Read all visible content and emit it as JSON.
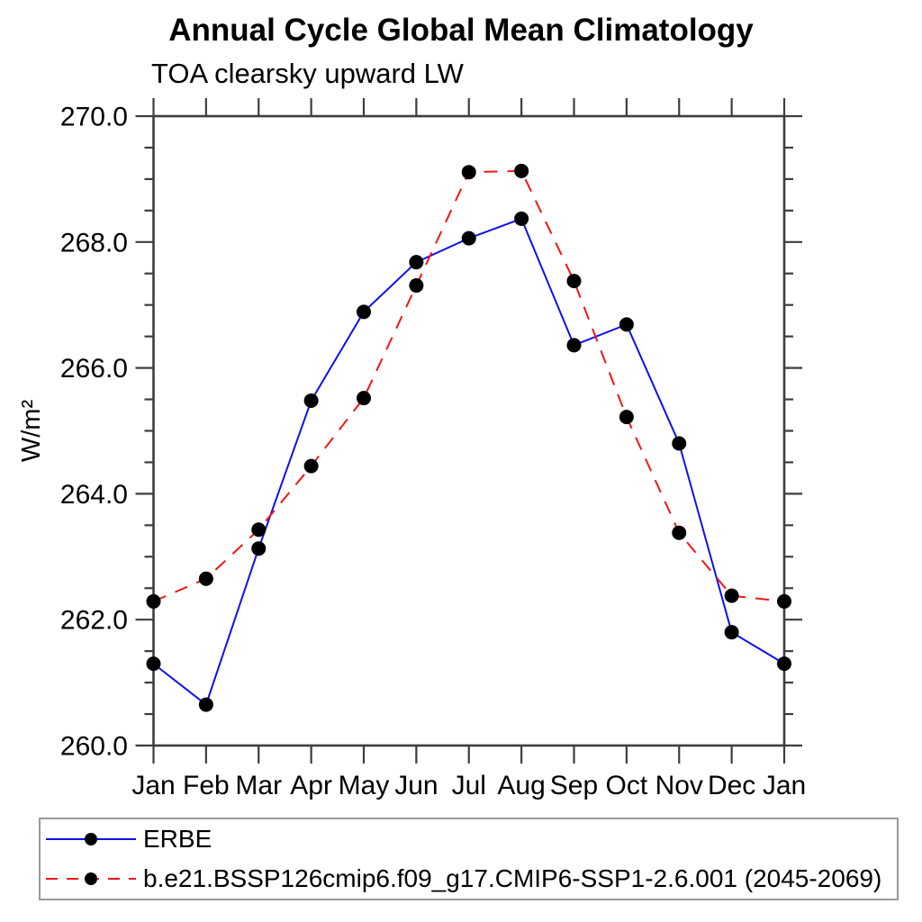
{
  "chart_data": {
    "type": "line",
    "title": "Annual Cycle Global Mean Climatology",
    "subtitle": "TOA clearsky upward LW",
    "ylabel": "W/m²",
    "xlabel": "",
    "categories": [
      "Jan",
      "Feb",
      "Mar",
      "Apr",
      "May",
      "Jun",
      "Jul",
      "Aug",
      "Sep",
      "Oct",
      "Nov",
      "Dec",
      "Jan"
    ],
    "ylim": [
      260.0,
      270.0
    ],
    "ytick_labels": [
      "260.0",
      "262.0",
      "264.0",
      "266.0",
      "268.0",
      "270.0"
    ],
    "ytick_major_interval": 2.0,
    "ytick_minor_interval": 0.5,
    "grid": false,
    "legend_position": "bottom-left",
    "axis_color": "#3d3d3d",
    "marker_color": "#000000",
    "series": [
      {
        "name": "ERBE",
        "color": "#0f0fee",
        "line_style": "solid",
        "marker": "filled-circle",
        "values": [
          261.3,
          260.65,
          263.13,
          265.48,
          266.89,
          267.68,
          268.06,
          268.37,
          266.36,
          266.69,
          264.8,
          261.8,
          261.3
        ]
      },
      {
        "name": "b.e21.BSSP126cmip6.f09_g17.CMIP6-SSP1-2.6.001 (2045-2069)",
        "color": "#f51414",
        "line_style": "dashed",
        "marker": "filled-circle",
        "values": [
          262.29,
          262.65,
          263.43,
          264.44,
          265.52,
          267.31,
          269.11,
          269.13,
          267.38,
          265.22,
          263.38,
          262.38,
          262.29
        ]
      }
    ]
  }
}
